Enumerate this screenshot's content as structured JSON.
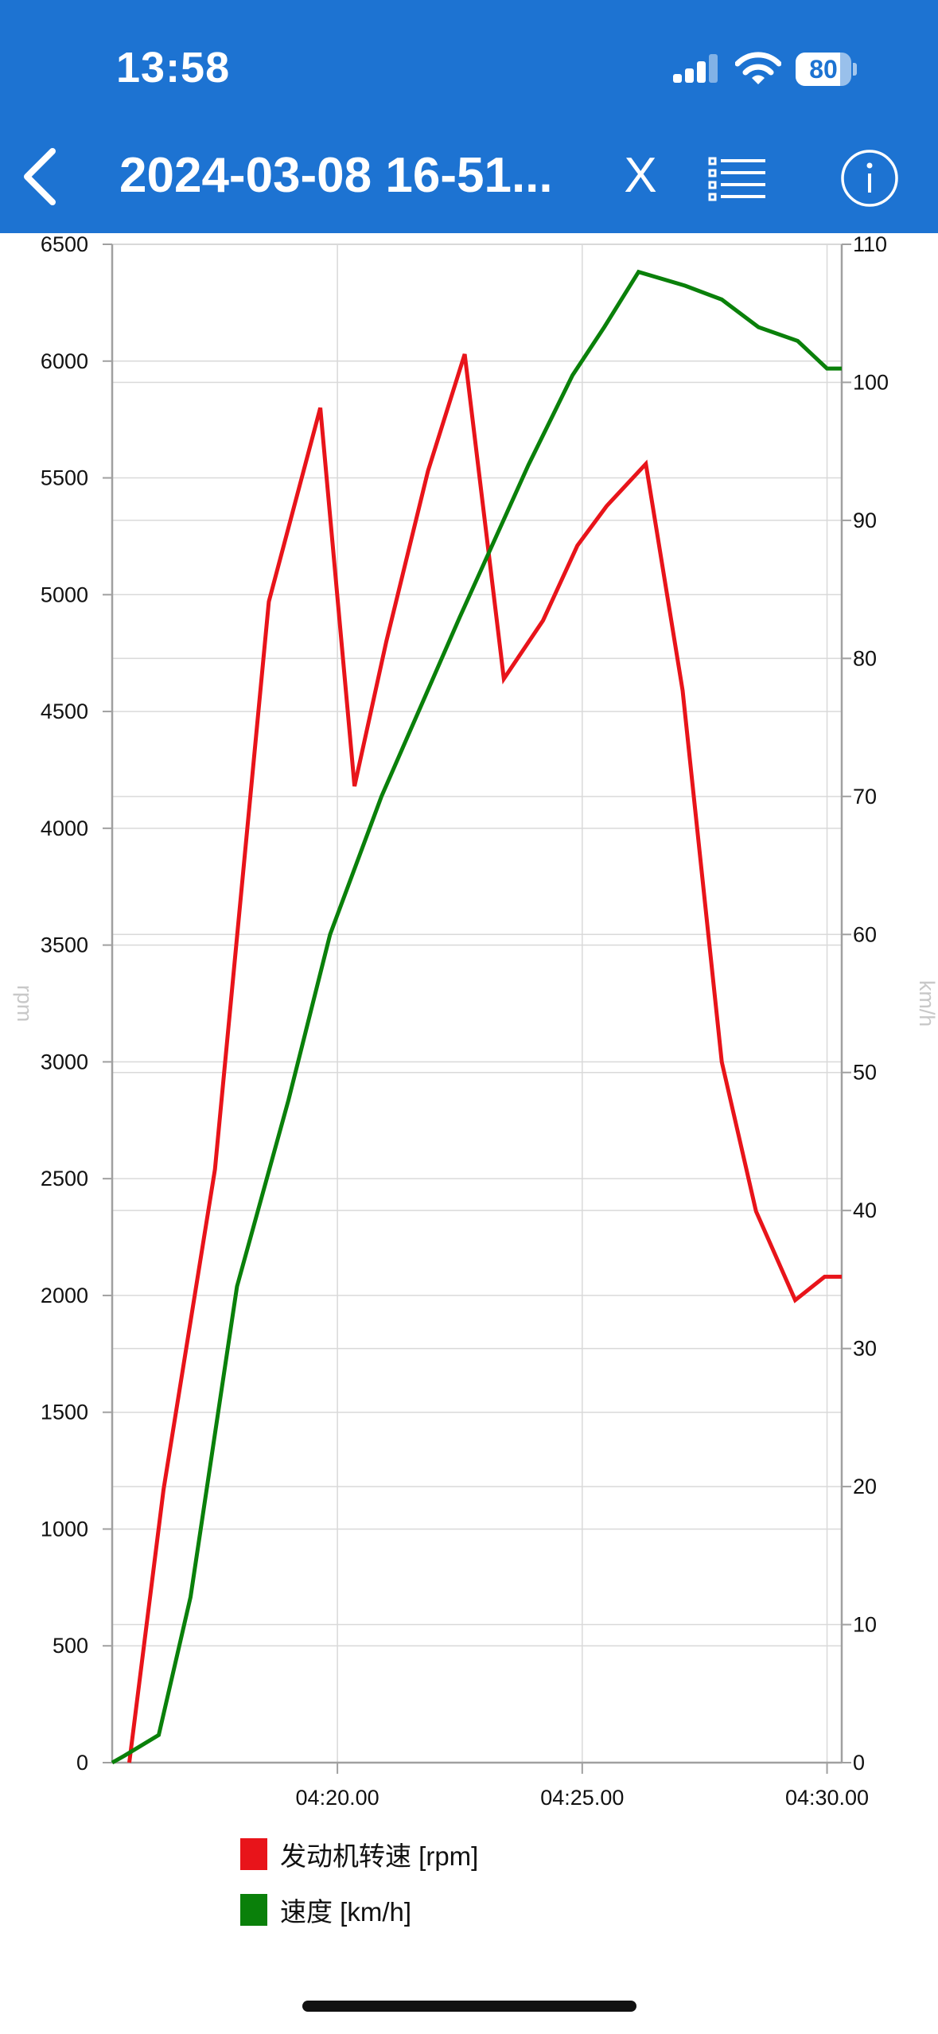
{
  "status_bar": {
    "time": "13:58",
    "battery_level": "80",
    "battery_fraction": 0.8,
    "icons": [
      "cellular-signal-icon",
      "wifi-icon",
      "battery-icon"
    ]
  },
  "toolbar": {
    "title": "2024-03-08 16-51...",
    "close_label": "X",
    "icons": [
      "back-chevron-icon",
      "list-icon",
      "info-icon"
    ]
  },
  "colors": {
    "toolbar_bg": "#1d73d2",
    "rpm_series": "#e8141a",
    "speed_series": "#0a800a",
    "grid": "#d9d9d9",
    "axis": "#a0a0a0"
  },
  "chart_data": {
    "type": "line",
    "x_axis": {
      "ticks": [
        {
          "value": 260,
          "label": "04:20.00"
        },
        {
          "value": 270,
          "label": "04:25.00"
        },
        {
          "value": 280,
          "label": "04:30.00"
        }
      ],
      "range_seconds": [
        250.8,
        280.6
      ]
    },
    "y_left": {
      "label": "rpm",
      "range": [
        0,
        6500
      ],
      "ticks": [
        "0",
        "500",
        "1000",
        "1500",
        "2000",
        "2500",
        "3000",
        "3500",
        "4000",
        "4500",
        "5000",
        "5500",
        "6000",
        "6500"
      ]
    },
    "y_right": {
      "label": "km/h",
      "range": [
        0,
        110
      ],
      "ticks": [
        "0",
        "10",
        "20",
        "30",
        "40",
        "50",
        "60",
        "70",
        "80",
        "90",
        "100",
        "110"
      ]
    },
    "grid": true,
    "legend_position": "bottom",
    "series": [
      {
        "name": "发动机转速 [rpm]",
        "axis": "left",
        "color": "#e8141a",
        "points": [
          [
            251.5,
            0
          ],
          [
            252.9,
            1170
          ],
          [
            255.0,
            2540
          ],
          [
            257.2,
            4970
          ],
          [
            259.3,
            5800
          ],
          [
            260.7,
            4180
          ],
          [
            262.0,
            4800
          ],
          [
            263.7,
            5530
          ],
          [
            265.2,
            6030
          ],
          [
            266.8,
            4640
          ],
          [
            268.4,
            4890
          ],
          [
            269.8,
            5210
          ],
          [
            271.0,
            5380
          ],
          [
            272.6,
            5560
          ],
          [
            274.1,
            4590
          ],
          [
            275.7,
            3000
          ],
          [
            277.1,
            2360
          ],
          [
            278.7,
            1980
          ],
          [
            279.9,
            2080
          ],
          [
            280.6,
            2080
          ]
        ]
      },
      {
        "name": "速度 [km/h]",
        "axis": "right",
        "color": "#0a800a",
        "points": [
          [
            250.8,
            0
          ],
          [
            251.3,
            0.5
          ],
          [
            252.7,
            2.0
          ],
          [
            254.0,
            12
          ],
          [
            255.9,
            34.5
          ],
          [
            258.0,
            48
          ],
          [
            259.7,
            60
          ],
          [
            261.8,
            70
          ],
          [
            265.0,
            83
          ],
          [
            267.8,
            94
          ],
          [
            269.6,
            100.5
          ],
          [
            270.9,
            104
          ],
          [
            272.3,
            108
          ],
          [
            274.2,
            107
          ],
          [
            275.7,
            106
          ],
          [
            277.2,
            104
          ],
          [
            278.8,
            103
          ],
          [
            280.0,
            101
          ],
          [
            280.6,
            101
          ]
        ]
      }
    ]
  }
}
